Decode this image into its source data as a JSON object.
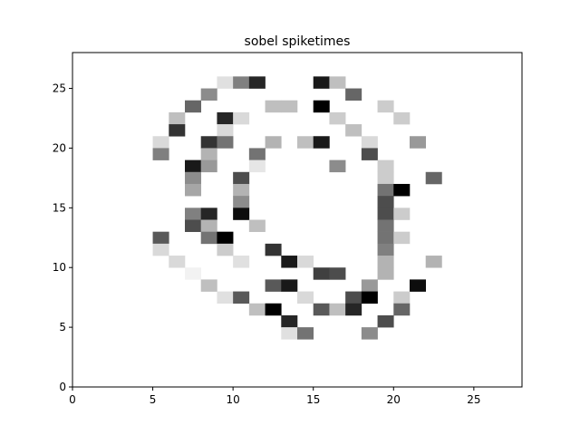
{
  "chart_data": {
    "type": "heatmap",
    "title": "sobel spiketimes",
    "xlabel": "",
    "ylabel": "",
    "xlim": [
      0,
      28
    ],
    "ylim": [
      0,
      28
    ],
    "x_ticks": [
      0,
      5,
      10,
      15,
      20,
      25
    ],
    "y_ticks": [
      0,
      5,
      10,
      15,
      20,
      25
    ],
    "grid": false,
    "colormap": "Greys",
    "cells": [
      {
        "x": 9,
        "y": 25,
        "v": 0.12
      },
      {
        "x": 10,
        "y": 25,
        "v": 0.5
      },
      {
        "x": 11,
        "y": 25,
        "v": 0.85
      },
      {
        "x": 15,
        "y": 25,
        "v": 0.9
      },
      {
        "x": 16,
        "y": 25,
        "v": 0.25
      },
      {
        "x": 8,
        "y": 24,
        "v": 0.45
      },
      {
        "x": 17,
        "y": 24,
        "v": 0.6
      },
      {
        "x": 7,
        "y": 23,
        "v": 0.6
      },
      {
        "x": 12,
        "y": 23,
        "v": 0.25
      },
      {
        "x": 13,
        "y": 23,
        "v": 0.25
      },
      {
        "x": 15,
        "y": 23,
        "v": 1.0
      },
      {
        "x": 19,
        "y": 23,
        "v": 0.2
      },
      {
        "x": 6,
        "y": 22,
        "v": 0.25
      },
      {
        "x": 9,
        "y": 22,
        "v": 0.85
      },
      {
        "x": 10,
        "y": 22,
        "v": 0.15
      },
      {
        "x": 16,
        "y": 22,
        "v": 0.2
      },
      {
        "x": 20,
        "y": 22,
        "v": 0.2
      },
      {
        "x": 6,
        "y": 21,
        "v": 0.8
      },
      {
        "x": 9,
        "y": 21,
        "v": 0.15
      },
      {
        "x": 17,
        "y": 21,
        "v": 0.25
      },
      {
        "x": 5,
        "y": 20,
        "v": 0.15
      },
      {
        "x": 8,
        "y": 20,
        "v": 0.8
      },
      {
        "x": 9,
        "y": 20,
        "v": 0.55
      },
      {
        "x": 12,
        "y": 20,
        "v": 0.3
      },
      {
        "x": 14,
        "y": 20,
        "v": 0.25
      },
      {
        "x": 15,
        "y": 20,
        "v": 0.9
      },
      {
        "x": 18,
        "y": 20,
        "v": 0.15
      },
      {
        "x": 21,
        "y": 20,
        "v": 0.4
      },
      {
        "x": 5,
        "y": 19,
        "v": 0.5
      },
      {
        "x": 8,
        "y": 19,
        "v": 0.3
      },
      {
        "x": 11,
        "y": 19,
        "v": 0.55
      },
      {
        "x": 18,
        "y": 19,
        "v": 0.7
      },
      {
        "x": 7,
        "y": 18,
        "v": 0.9
      },
      {
        "x": 8,
        "y": 18,
        "v": 0.4
      },
      {
        "x": 11,
        "y": 18,
        "v": 0.1
      },
      {
        "x": 16,
        "y": 18,
        "v": 0.45
      },
      {
        "x": 19,
        "y": 18,
        "v": 0.2
      },
      {
        "x": 7,
        "y": 17,
        "v": 0.45
      },
      {
        "x": 10,
        "y": 17,
        "v": 0.7
      },
      {
        "x": 19,
        "y": 17,
        "v": 0.2
      },
      {
        "x": 22,
        "y": 17,
        "v": 0.6
      },
      {
        "x": 7,
        "y": 16,
        "v": 0.35
      },
      {
        "x": 10,
        "y": 16,
        "v": 0.3
      },
      {
        "x": 19,
        "y": 16,
        "v": 0.55
      },
      {
        "x": 20,
        "y": 16,
        "v": 1.0
      },
      {
        "x": 10,
        "y": 15,
        "v": 0.45
      },
      {
        "x": 19,
        "y": 15,
        "v": 0.7
      },
      {
        "x": 7,
        "y": 14,
        "v": 0.5
      },
      {
        "x": 8,
        "y": 14,
        "v": 0.85
      },
      {
        "x": 10,
        "y": 14,
        "v": 0.95
      },
      {
        "x": 19,
        "y": 14,
        "v": 0.7
      },
      {
        "x": 20,
        "y": 14,
        "v": 0.2
      },
      {
        "x": 7,
        "y": 13,
        "v": 0.7
      },
      {
        "x": 8,
        "y": 13,
        "v": 0.3
      },
      {
        "x": 11,
        "y": 13,
        "v": 0.25
      },
      {
        "x": 19,
        "y": 13,
        "v": 0.55
      },
      {
        "x": 5,
        "y": 12,
        "v": 0.65
      },
      {
        "x": 8,
        "y": 12,
        "v": 0.55
      },
      {
        "x": 9,
        "y": 12,
        "v": 1.0
      },
      {
        "x": 19,
        "y": 12,
        "v": 0.55
      },
      {
        "x": 20,
        "y": 12,
        "v": 0.2
      },
      {
        "x": 5,
        "y": 11,
        "v": 0.15
      },
      {
        "x": 9,
        "y": 11,
        "v": 0.2
      },
      {
        "x": 12,
        "y": 11,
        "v": 0.8
      },
      {
        "x": 19,
        "y": 11,
        "v": 0.5
      },
      {
        "x": 6,
        "y": 10,
        "v": 0.15
      },
      {
        "x": 10,
        "y": 10,
        "v": 0.12
      },
      {
        "x": 13,
        "y": 10,
        "v": 0.9
      },
      {
        "x": 14,
        "y": 10,
        "v": 0.15
      },
      {
        "x": 19,
        "y": 10,
        "v": 0.3
      },
      {
        "x": 22,
        "y": 10,
        "v": 0.3
      },
      {
        "x": 7,
        "y": 9,
        "v": 0.05
      },
      {
        "x": 15,
        "y": 9,
        "v": 0.75
      },
      {
        "x": 16,
        "y": 9,
        "v": 0.7
      },
      {
        "x": 19,
        "y": 9,
        "v": 0.3
      },
      {
        "x": 8,
        "y": 8,
        "v": 0.25
      },
      {
        "x": 12,
        "y": 8,
        "v": 0.65
      },
      {
        "x": 13,
        "y": 8,
        "v": 0.9
      },
      {
        "x": 18,
        "y": 8,
        "v": 0.4
      },
      {
        "x": 21,
        "y": 8,
        "v": 0.95
      },
      {
        "x": 9,
        "y": 7,
        "v": 0.12
      },
      {
        "x": 10,
        "y": 7,
        "v": 0.65
      },
      {
        "x": 14,
        "y": 7,
        "v": 0.15
      },
      {
        "x": 17,
        "y": 7,
        "v": 0.7
      },
      {
        "x": 18,
        "y": 7,
        "v": 1.0
      },
      {
        "x": 20,
        "y": 7,
        "v": 0.2
      },
      {
        "x": 11,
        "y": 6,
        "v": 0.25
      },
      {
        "x": 12,
        "y": 6,
        "v": 1.0
      },
      {
        "x": 15,
        "y": 6,
        "v": 0.65
      },
      {
        "x": 16,
        "y": 6,
        "v": 0.25
      },
      {
        "x": 17,
        "y": 6,
        "v": 0.85
      },
      {
        "x": 20,
        "y": 6,
        "v": 0.6
      },
      {
        "x": 13,
        "y": 5,
        "v": 0.85
      },
      {
        "x": 19,
        "y": 5,
        "v": 0.7
      },
      {
        "x": 13,
        "y": 4,
        "v": 0.12
      },
      {
        "x": 14,
        "y": 4,
        "v": 0.55
      },
      {
        "x": 18,
        "y": 4,
        "v": 0.45
      }
    ]
  }
}
